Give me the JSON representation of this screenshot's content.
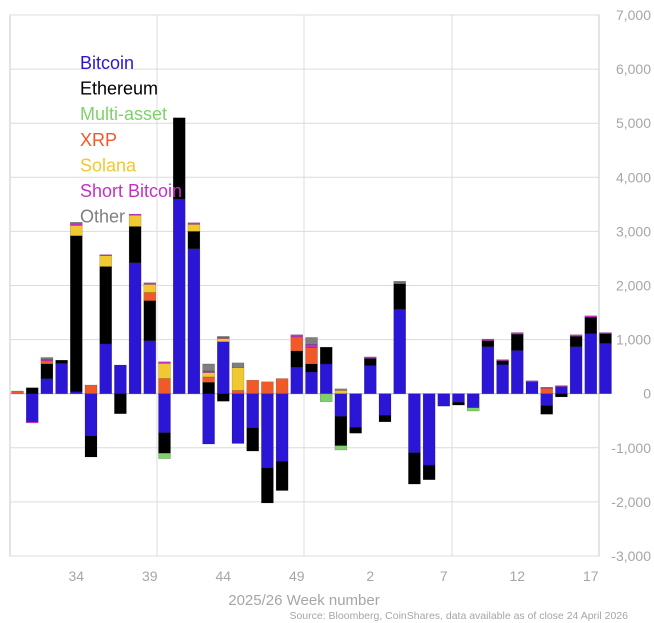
{
  "chart_data": {
    "type": "bar",
    "stacked": true,
    "xlabel": "2025/26 Week number",
    "ylabel": "",
    "ylim": [
      -3000,
      7000
    ],
    "yticks": [
      "-3,000",
      "-2,000",
      "-1,000",
      "0",
      "1,000",
      "2,000",
      "3,000",
      "4,000",
      "5,000",
      "6,000",
      "7,000"
    ],
    "ytick_values": [
      -3000,
      -2000,
      -1000,
      0,
      1000,
      2000,
      3000,
      4000,
      5000,
      6000,
      7000
    ],
    "xticks": [
      "34",
      "39",
      "44",
      "49",
      "2",
      "7",
      "12",
      "17"
    ],
    "xtick_indices": [
      4,
      9,
      14,
      19,
      24,
      29,
      34,
      39
    ],
    "source": "Source: Bloomberg, CoinShares, data available as of close 24 April 2026",
    "legend_position": "top-left",
    "grid": true,
    "series": [
      {
        "name": "Bitcoin",
        "color": "#2b16d6",
        "values": [
          0,
          -520,
          280,
          560,
          40,
          -780,
          920,
          530,
          2420,
          980,
          -720,
          3600,
          2680,
          -930,
          960,
          -920,
          -630,
          -1370,
          -1250,
          490,
          400,
          550,
          -420,
          -620,
          520,
          -400,
          1560,
          -1090,
          -1320,
          -230,
          -160,
          -260,
          870,
          540,
          800,
          220,
          -220,
          130,
          870,
          1110,
          930
        ]
      },
      {
        "name": "Ethereum",
        "color": "#000000",
        "values": [
          0,
          110,
          270,
          60,
          2880,
          -390,
          1430,
          -370,
          670,
          740,
          -380,
          1500,
          320,
          210,
          -140,
          0,
          -430,
          -650,
          -540,
          300,
          150,
          310,
          -540,
          -110,
          130,
          -120,
          470,
          -580,
          -270,
          0,
          -50,
          0,
          110,
          70,
          300,
          0,
          -160,
          -60,
          190,
          300,
          180
        ]
      },
      {
        "name": "Multi-asset",
        "color": "#7fd16a",
        "values": [
          0,
          0,
          0,
          0,
          0,
          0,
          0,
          0,
          0,
          0,
          -100,
          0,
          0,
          0,
          0,
          0,
          0,
          0,
          0,
          0,
          0,
          -150,
          -80,
          0,
          0,
          0,
          0,
          0,
          0,
          0,
          0,
          -60,
          0,
          0,
          0,
          0,
          0,
          0,
          0,
          0,
          0
        ]
      },
      {
        "name": "XRP",
        "color": "#f05a28",
        "values": [
          50,
          0,
          60,
          0,
          0,
          160,
          0,
          0,
          0,
          150,
          280,
          0,
          0,
          100,
          0,
          60,
          250,
          220,
          280,
          260,
          300,
          0,
          0,
          0,
          0,
          0,
          0,
          0,
          0,
          0,
          0,
          0,
          0,
          0,
          0,
          0,
          100,
          0,
          0,
          0,
          0
        ]
      },
      {
        "name": "Solana",
        "color": "#f0c832",
        "values": [
          0,
          0,
          0,
          0,
          190,
          0,
          200,
          0,
          210,
          150,
          280,
          0,
          130,
          80,
          60,
          420,
          0,
          0,
          0,
          0,
          0,
          0,
          60,
          0,
          0,
          0,
          0,
          0,
          0,
          0,
          0,
          0,
          0,
          0,
          0,
          0,
          0,
          0,
          0,
          0,
          0
        ]
      },
      {
        "name": "Short Bitcoin",
        "color": "#c62fc6",
        "values": [
          0,
          -20,
          30,
          0,
          30,
          0,
          20,
          0,
          20,
          30,
          30,
          0,
          30,
          30,
          20,
          0,
          0,
          0,
          0,
          40,
          60,
          0,
          0,
          0,
          30,
          0,
          20,
          0,
          0,
          0,
          0,
          0,
          30,
          20,
          30,
          20,
          20,
          20,
          30,
          30,
          20
        ]
      },
      {
        "name": "Other",
        "color": "#7f7f7f",
        "values": [
          0,
          0,
          30,
          0,
          30,
          0,
          0,
          0,
          0,
          0,
          0,
          0,
          0,
          130,
          20,
          90,
          0,
          0,
          0,
          0,
          130,
          0,
          30,
          0,
          0,
          0,
          30,
          0,
          0,
          0,
          0,
          0,
          0,
          0,
          0,
          0,
          0,
          0,
          0,
          0,
          0
        ]
      }
    ]
  }
}
